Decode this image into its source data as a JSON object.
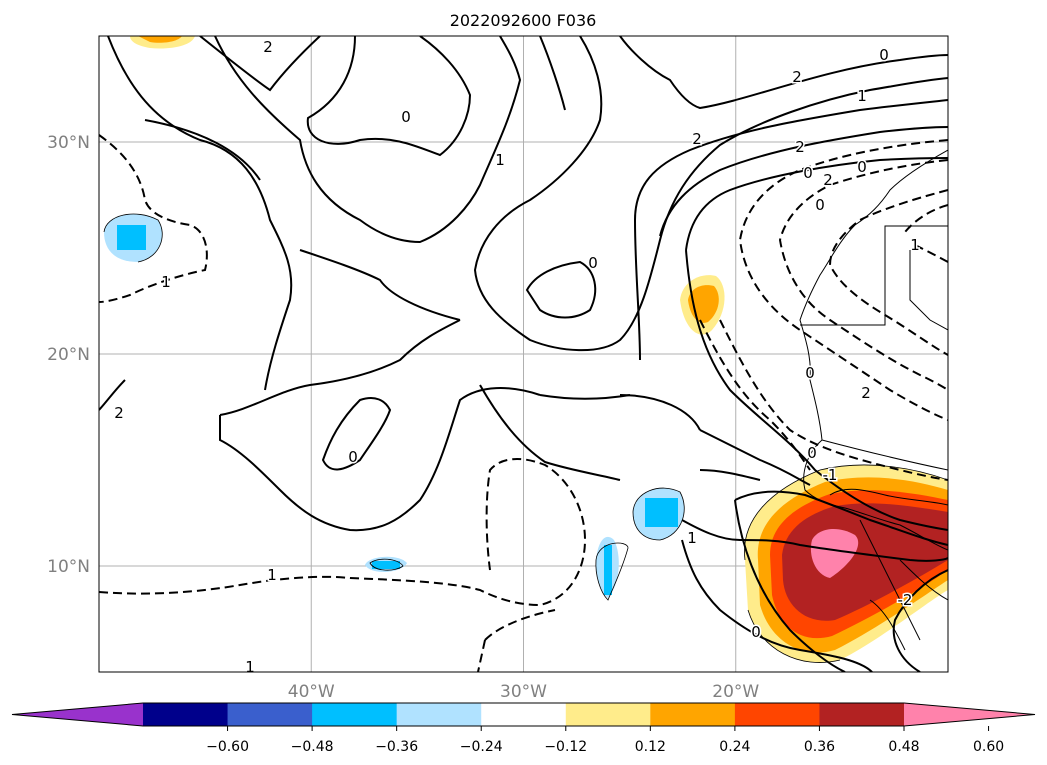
{
  "title": "2022092600 F036",
  "chart_data": {
    "type": "contour",
    "title": "2022092600 F036",
    "map_extent": {
      "lon": [
        -50,
        -10
      ],
      "lat": [
        5,
        35
      ]
    },
    "lat_ticks": [
      {
        "value": 30,
        "label": "30°N"
      },
      {
        "value": 20,
        "label": "20°N"
      },
      {
        "value": 10,
        "label": "10°N"
      }
    ],
    "lon_ticks": [
      {
        "value": -40,
        "label": "40°W"
      },
      {
        "value": -30,
        "label": "30°W"
      },
      {
        "value": -20,
        "label": "20°W"
      }
    ],
    "grid": true,
    "contour_lines": {
      "color": "#000000",
      "negative_style": "dashed",
      "labels": [
        "2",
        "0",
        "1",
        "2",
        "0",
        "2",
        "1",
        "2",
        "0",
        "2",
        "0",
        "1",
        "2",
        "0",
        "0",
        "1",
        "0",
        "1",
        "1",
        "0",
        "0",
        "2",
        "-1",
        "-2",
        "0",
        "1"
      ]
    },
    "colorbar": {
      "orientation": "horizontal",
      "extend": "both",
      "ticks": [
        "−0.60",
        "−0.48",
        "−0.36",
        "−0.24",
        "−0.12",
        "0.12",
        "0.24",
        "0.36",
        "0.48",
        "0.60"
      ],
      "colors": [
        "#9932CC",
        "#00008B",
        "#3A5FCD",
        "#00BFFF",
        "#B0E2FF",
        "#FFFFFF",
        "#FFEC8B",
        "#FFA500",
        "#FF4500",
        "#B22222",
        "#FF82AB"
      ]
    }
  }
}
